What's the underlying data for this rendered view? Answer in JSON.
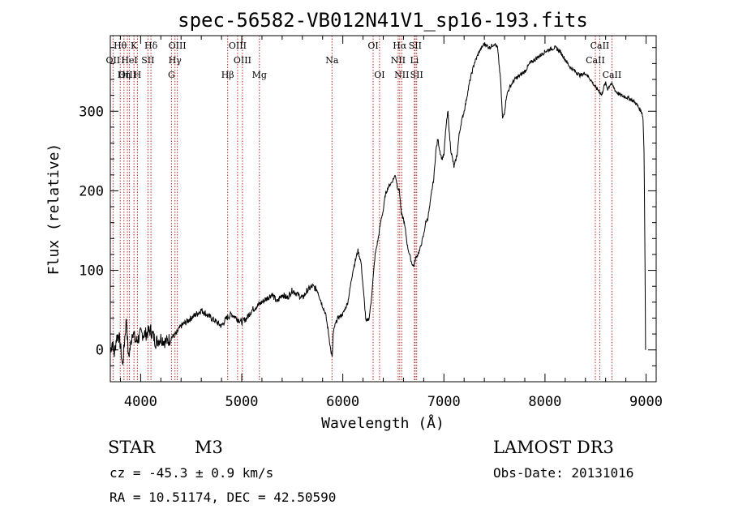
{
  "chart_data": {
    "type": "line",
    "title": "spec-56582-VB012N41V1_sp16-193.fits",
    "xlabel": "Wavelength (Å)",
    "ylabel": "Flux (relative)",
    "xlim": [
      3700,
      9100
    ],
    "ylim": [
      -40,
      395
    ],
    "xticks": [
      4000,
      5000,
      6000,
      7000,
      8000,
      9000
    ],
    "yticks": [
      0,
      100,
      200,
      300
    ],
    "series": [
      {
        "name": "spectrum",
        "x": [
          3700,
          3720,
          3740,
          3760,
          3780,
          3800,
          3820,
          3840,
          3860,
          3880,
          3900,
          3920,
          3950,
          3980,
          4000,
          4050,
          4100,
          4150,
          4200,
          4250,
          4300,
          4350,
          4400,
          4450,
          4500,
          4550,
          4600,
          4650,
          4700,
          4750,
          4800,
          4850,
          4900,
          4950,
          5000,
          5050,
          5100,
          5150,
          5200,
          5250,
          5300,
          5350,
          5400,
          5450,
          5500,
          5550,
          5600,
          5650,
          5700,
          5750,
          5800,
          5830,
          5860,
          5880,
          5895,
          5905,
          5920,
          5950,
          6000,
          6050,
          6100,
          6150,
          6180,
          6200,
          6230,
          6260,
          6280,
          6300,
          6320,
          6350,
          6380,
          6400,
          6420,
          6450,
          6480,
          6500,
          6520,
          6540,
          6560,
          6570,
          6580,
          6600,
          6620,
          6640,
          6660,
          6680,
          6700,
          6720,
          6740,
          6760,
          6780,
          6800,
          6820,
          6840,
          6860,
          6880,
          6900,
          6920,
          6940,
          6960,
          6980,
          7000,
          7020,
          7040,
          7055,
          7070,
          7100,
          7130,
          7150,
          7170,
          7200,
          7230,
          7260,
          7300,
          7350,
          7400,
          7450,
          7500,
          7530,
          7560,
          7580,
          7600,
          7620,
          7650,
          7700,
          7750,
          7800,
          7850,
          7900,
          7950,
          8000,
          8050,
          8100,
          8150,
          8200,
          8250,
          8300,
          8350,
          8400,
          8450,
          8500,
          8540,
          8560,
          8580,
          8600,
          8620,
          8650,
          8680,
          8700,
          8750,
          8800,
          8850,
          8900,
          8950,
          8960,
          8970,
          8980,
          8990,
          8995
        ],
        "y": [
          0,
          10,
          -5,
          15,
          20,
          5,
          -20,
          10,
          40,
          -10,
          5,
          25,
          10,
          15,
          20,
          20,
          25,
          10,
          15,
          10,
          15,
          20,
          30,
          35,
          40,
          45,
          50,
          45,
          40,
          35,
          30,
          40,
          45,
          40,
          35,
          40,
          50,
          55,
          60,
          65,
          70,
          60,
          70,
          65,
          75,
          70,
          65,
          75,
          80,
          75,
          55,
          45,
          20,
          0,
          -10,
          20,
          30,
          40,
          45,
          60,
          100,
          125,
          110,
          80,
          35,
          40,
          60,
          90,
          120,
          140,
          165,
          175,
          195,
          205,
          210,
          215,
          220,
          205,
          200,
          185,
          170,
          165,
          150,
          130,
          120,
          110,
          105,
          115,
          120,
          125,
          135,
          145,
          160,
          165,
          180,
          200,
          215,
          250,
          265,
          250,
          240,
          245,
          280,
          300,
          270,
          250,
          230,
          245,
          270,
          285,
          300,
          320,
          340,
          360,
          375,
          385,
          380,
          385,
          380,
          340,
          290,
          300,
          320,
          330,
          340,
          345,
          350,
          360,
          365,
          370,
          375,
          378,
          380,
          375,
          365,
          355,
          350,
          345,
          348,
          340,
          330,
          325,
          320,
          330,
          335,
          328,
          335,
          330,
          325,
          320,
          318,
          315,
          310,
          300,
          298,
          290,
          250,
          100,
          0
        ]
      }
    ],
    "emission_lines": [
      {
        "label": "Hθ",
        "x": 3798,
        "row": 0
      },
      {
        "label": "K",
        "x": 3934,
        "row": 0
      },
      {
        "label": "Hδ",
        "x": 4102,
        "row": 0
      },
      {
        "label": "OIII",
        "x": 4363,
        "row": 0
      },
      {
        "label": "OIII",
        "x": 4959,
        "row": 0
      },
      {
        "label": "OI",
        "x": 6300,
        "row": 0
      },
      {
        "label": "Hα",
        "x": 6563,
        "row": 0
      },
      {
        "label": "SII",
        "x": 6716,
        "row": 0
      },
      {
        "label": "CaII",
        "x": 8542,
        "row": 0
      },
      {
        "label": "OII",
        "x": 3727,
        "row": 1
      },
      {
        "label": "HeI",
        "x": 3889,
        "row": 1
      },
      {
        "label": "SII",
        "x": 4072,
        "row": 1
      },
      {
        "label": "Hγ",
        "x": 4340,
        "row": 1
      },
      {
        "label": "OIII",
        "x": 5007,
        "row": 1
      },
      {
        "label": "Na",
        "x": 5893,
        "row": 1
      },
      {
        "label": "NII",
        "x": 6548,
        "row": 1
      },
      {
        "label": "Li",
        "x": 6708,
        "row": 1
      },
      {
        "label": "CaII",
        "x": 8498,
        "row": 1
      },
      {
        "label": "OIII",
        "x": 3869,
        "row": 2
      },
      {
        "label": "Hη",
        "x": 3835,
        "row": 2
      },
      {
        "label": "H",
        "x": 3968,
        "row": 2
      },
      {
        "label": "G",
        "x": 4305,
        "row": 2
      },
      {
        "label": "Hβ",
        "x": 4861,
        "row": 2
      },
      {
        "label": "Mg",
        "x": 5175,
        "row": 2
      },
      {
        "label": "OI",
        "x": 6363,
        "row": 2
      },
      {
        "label": "NII",
        "x": 6583,
        "row": 2
      },
      {
        "label": "SII",
        "x": 6731,
        "row": 2
      },
      {
        "label": "CaII",
        "x": 8662,
        "row": 2
      }
    ]
  },
  "info": {
    "object_type": "STAR",
    "subclass": "M3",
    "survey": "LAMOST DR3",
    "cz": "cz = -45.3 ± 0.9 km/s",
    "obs_date": "Obs-Date: 20131016",
    "coords": "RA =  10.51174, DEC =  42.50590"
  }
}
